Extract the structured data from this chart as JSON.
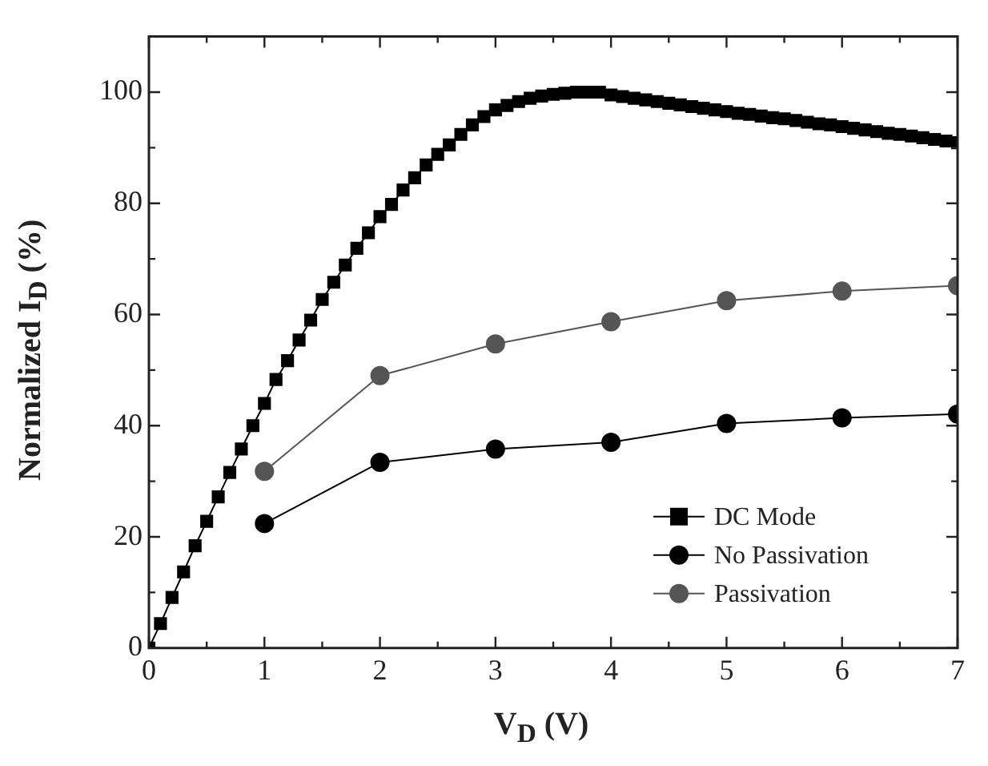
{
  "chart_data": {
    "type": "line",
    "xlabel": "V$_{D}$ (V)",
    "ylabel": "Normalized I$_{D}$ (%)",
    "xlim": [
      0,
      7
    ],
    "ylim": [
      0,
      110
    ],
    "xticks": [
      0,
      {
        "value": 0.5,
        "label": null
      },
      1,
      {
        "value": 1.5,
        "label": null
      },
      2,
      {
        "value": 2.5,
        "label": null
      },
      3,
      {
        "value": 3.5,
        "label": null
      },
      4,
      {
        "value": 4.5,
        "label": null
      },
      5,
      {
        "value": 5.5,
        "label": null
      },
      6,
      {
        "value": 6.5,
        "label": null
      },
      7
    ],
    "yticks": [
      0,
      {
        "value": 10,
        "label": null
      },
      20,
      {
        "value": 30,
        "label": null
      },
      40,
      {
        "value": 50,
        "label": null
      },
      60,
      {
        "value": 70,
        "label": null
      },
      80,
      {
        "value": 90,
        "label": null
      },
      100
    ],
    "grid": false,
    "legend": "bottom right",
    "series": [
      {
        "name": "DC Mode",
        "color": "#000000",
        "marker": "square",
        "x": [
          0,
          0.1,
          0.2,
          0.3,
          0.4,
          0.5,
          0.6,
          0.7,
          0.8,
          0.9,
          1.0,
          1.1,
          1.2,
          1.3,
          1.4,
          1.5,
          1.6,
          1.7,
          1.8,
          1.9,
          2.0,
          2.1,
          2.2,
          2.3,
          2.4,
          2.5,
          2.6,
          2.7,
          2.8,
          2.9,
          3.0,
          3.1,
          3.2,
          3.3,
          3.4,
          3.5,
          3.6,
          3.7,
          3.8,
          3.9,
          4.0,
          4.1,
          4.2,
          4.3,
          4.4,
          4.5,
          4.6,
          4.7,
          4.8,
          4.9,
          5.0,
          5.1,
          5.2,
          5.3,
          5.4,
          5.5,
          5.6,
          5.7,
          5.8,
          5.9,
          6.0,
          6.1,
          6.2,
          6.3,
          6.4,
          6.5,
          6.6,
          6.7,
          6.8,
          6.9,
          7.0
        ],
        "values": [
          0,
          4.4,
          9.1,
          13.7,
          18.4,
          22.8,
          27.2,
          31.6,
          35.8,
          40,
          44,
          48.3,
          51.7,
          55.4,
          59,
          62.7,
          65.8,
          68.9,
          71.9,
          74.7,
          77.6,
          79.8,
          82.4,
          84.6,
          86.9,
          88.8,
          90.5,
          92.4,
          94.1,
          95.6,
          96.8,
          97.6,
          98.3,
          98.9,
          99.3,
          99.6,
          99.8,
          100,
          100,
          100,
          99.5,
          99.2,
          98.9,
          98.6,
          98.3,
          98.0,
          97.7,
          97.4,
          97.1,
          96.8,
          96.5,
          96.2,
          96.0,
          95.7,
          95.4,
          95.2,
          94.9,
          94.6,
          94.3,
          94.1,
          93.8,
          93.5,
          93.2,
          92.9,
          92.6,
          92.4,
          92.1,
          91.8,
          91.5,
          91.2,
          90.9
        ]
      },
      {
        "name": "No Passivation",
        "color": "#000000",
        "marker": "circle",
        "x": [
          1,
          2,
          3,
          4,
          5,
          6,
          7
        ],
        "values": [
          22.4,
          33.4,
          35.8,
          37,
          40.4,
          41.4,
          42.1
        ]
      },
      {
        "name": "Passivation",
        "color": "#555555",
        "marker": "circle",
        "x": [
          1,
          2,
          3,
          4,
          5,
          6,
          7
        ],
        "values": [
          31.8,
          49,
          54.7,
          58.7,
          62.5,
          64.2,
          65.2
        ]
      }
    ]
  }
}
